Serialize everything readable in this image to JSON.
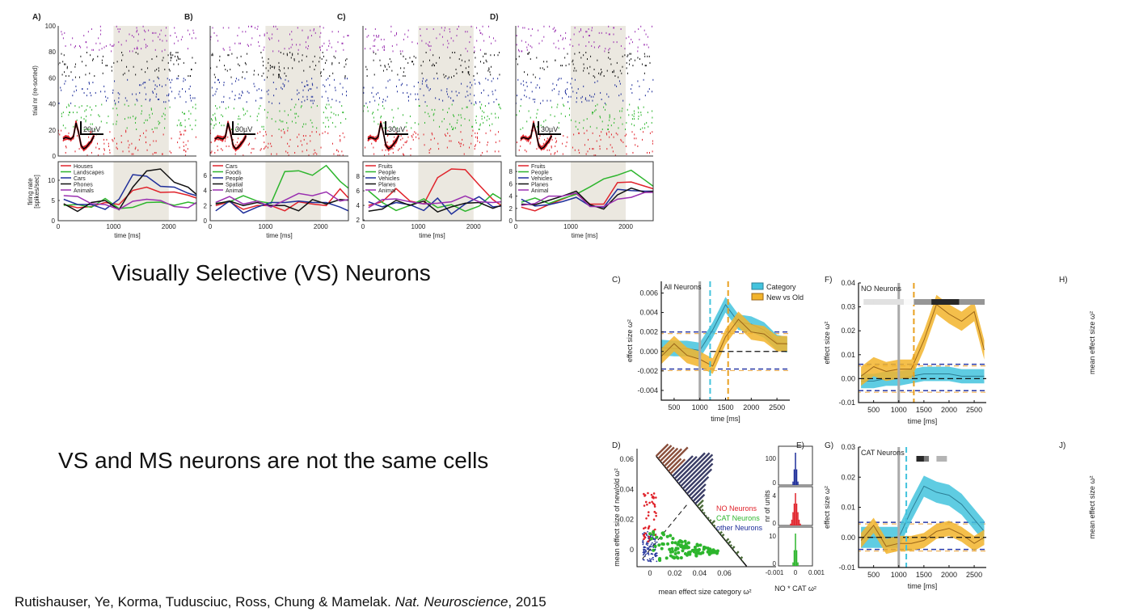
{
  "slide": {
    "heading_vs": "Visually Selective (VS) Neurons",
    "heading_same_cells": "VS and MS neurons are not the same cells",
    "citation_authors": "Rutishauser, Ye, Korma, Tudusciuc, Ross, Chung & Mamelak. ",
    "citation_journal": "Nat. Neuroscience",
    "citation_year": ", 2015"
  },
  "colors": {
    "red": "#e0232b",
    "green": "#2db52d",
    "blue": "#1f2f9a",
    "black": "#111111",
    "purple": "#9a2fb0",
    "shade": "#ebe8e0",
    "category_band": "#43c3dd",
    "category_line": "#2c7f96",
    "newold_band": "#f2b42c",
    "newold_line": "#9b6518",
    "null_blue": "#2a3aa8",
    "null_orange": "#f0b45a"
  },
  "chart_data": [
    {
      "panel": "A)",
      "type": "line",
      "raster_ylabel": "trial nr (re-sorted)",
      "raster_yticks": [
        "0",
        "20",
        "40",
        "60",
        "80",
        "100"
      ],
      "waveform_scale": "20µV",
      "ylabel": [
        "firing rate",
        "[spikes/sec]"
      ],
      "xlabel": "time [ms]",
      "xlim": [
        0,
        2500
      ],
      "ylim": [
        0,
        14.6
      ],
      "xticks": [
        0,
        1000,
        2000
      ],
      "yticks": [
        0,
        5,
        10
      ],
      "stimulus_window": [
        1000,
        2000
      ],
      "x": [
        100,
        350,
        600,
        850,
        1100,
        1350,
        1600,
        1850,
        2100,
        2350,
        2500
      ],
      "series": [
        {
          "name": "Houses",
          "color": "#e0232b",
          "values": [
            4,
            3.2,
            3.5,
            4.5,
            4,
            7.5,
            8.3,
            7,
            7.1,
            6.3,
            5.6
          ]
        },
        {
          "name": "Landscapes",
          "color": "#2db52d",
          "values": [
            3.8,
            4,
            3.3,
            5.5,
            3,
            3.3,
            4.5,
            4.6,
            3.8,
            4.6,
            4.2
          ]
        },
        {
          "name": "Cars",
          "color": "#1f2f9a",
          "values": [
            5.3,
            4,
            4,
            2.8,
            5.3,
            11.4,
            11,
            8.5,
            8.3,
            6.8,
            6.2
          ]
        },
        {
          "name": "Phones",
          "color": "#111111",
          "values": [
            4.2,
            2.3,
            4.5,
            5,
            2.7,
            8.3,
            12.3,
            12.8,
            9.5,
            8.3,
            6.5
          ]
        },
        {
          "name": "Animals",
          "color": "#9a2fb0",
          "values": [
            6.2,
            6,
            4.2,
            4,
            2.8,
            4.8,
            5.3,
            5,
            3.5,
            3.2,
            4.5
          ]
        }
      ]
    },
    {
      "panel": "B)",
      "type": "line",
      "waveform_scale": "30µV",
      "xlabel": "time [ms]",
      "xlim": [
        0,
        2500
      ],
      "ylim": [
        0,
        7.8
      ],
      "xticks": [
        0,
        1000,
        2000
      ],
      "yticks": [
        0,
        2,
        4,
        6
      ],
      "stimulus_window": [
        1000,
        2000
      ],
      "x": [
        100,
        350,
        600,
        850,
        1100,
        1350,
        1600,
        1850,
        2100,
        2350,
        2500
      ],
      "series": [
        {
          "name": "Cars",
          "color": "#e0232b",
          "values": [
            2,
            2.5,
            1.5,
            2,
            2,
            1.3,
            2.5,
            2.2,
            2,
            4.2,
            3
          ]
        },
        {
          "name": "Foods",
          "color": "#2db52d",
          "values": [
            2.3,
            2.5,
            3.3,
            2.6,
            2.3,
            6.5,
            6.6,
            6,
            7.3,
            5.2,
            4.3
          ]
        },
        {
          "name": "People",
          "color": "#1f2f9a",
          "values": [
            1.3,
            2.6,
            1,
            1.8,
            2.4,
            2.4,
            2.6,
            2.4,
            2.4,
            1.8,
            1.3
          ]
        },
        {
          "name": "Spatial",
          "color": "#111111",
          "values": [
            2.2,
            2.6,
            2,
            2.4,
            2,
            2,
            1.3,
            2.8,
            2.2,
            2.8,
            2.7
          ]
        },
        {
          "name": "Animal",
          "color": "#9a2fb0",
          "values": [
            2.4,
            3.2,
            2.2,
            2.6,
            1.8,
            2.7,
            3.6,
            3.3,
            3.8,
            2.6,
            2.8
          ]
        }
      ]
    },
    {
      "panel": "C)",
      "type": "line",
      "waveform_scale": "30µV",
      "xlabel": "time [ms]",
      "xlim": [
        0,
        2500
      ],
      "ylim": [
        1.9,
        10
      ],
      "xticks": [
        0,
        1000,
        2000
      ],
      "yticks": [
        2,
        4,
        6,
        8
      ],
      "stimulus_window": [
        1000,
        2000
      ],
      "x": [
        100,
        350,
        600,
        850,
        1100,
        1350,
        1600,
        1850,
        2100,
        2350,
        2500
      ],
      "series": [
        {
          "name": "Fruits",
          "color": "#e0232b",
          "values": [
            4,
            4.5,
            6.3,
            4.6,
            4.2,
            7.8,
            9,
            8.9,
            6.8,
            4.8,
            4
          ]
        },
        {
          "name": "People",
          "color": "#2db52d",
          "values": [
            6,
            4.4,
            3.3,
            4,
            4.9,
            3.7,
            4.1,
            3.2,
            3.9,
            5.6,
            4.9
          ]
        },
        {
          "name": "Vehicles",
          "color": "#1f2f9a",
          "values": [
            4.5,
            3.8,
            4.4,
            4.1,
            3.3,
            5,
            2.8,
            4.2,
            5.2,
            3.8,
            3.9
          ]
        },
        {
          "name": "Planes",
          "color": "#111111",
          "values": [
            3.2,
            3.5,
            4.7,
            4,
            4.6,
            3.1,
            3.8,
            4.3,
            4.4,
            3.6,
            4
          ]
        },
        {
          "name": "Animal",
          "color": "#9a2fb0",
          "values": [
            3.7,
            4.8,
            4.9,
            4.5,
            4.2,
            4.3,
            4.5,
            5.3,
            4.5,
            4.4,
            4.5
          ]
        }
      ]
    },
    {
      "panel": "D)",
      "type": "line",
      "waveform_scale": "30µV",
      "xlabel": "time [ms]",
      "xlim": [
        0,
        2500
      ],
      "ylim": [
        0,
        9.6
      ],
      "xticks": [
        0,
        1000,
        2000
      ],
      "yticks": [
        0,
        2,
        4,
        6,
        8
      ],
      "stimulus_window": [
        1000,
        2000
      ],
      "x": [
        100,
        350,
        600,
        850,
        1100,
        1350,
        1600,
        1850,
        2100,
        2350,
        2500
      ],
      "series": [
        {
          "name": "Fruits",
          "color": "#e0232b",
          "values": [
            2.2,
            1.6,
            2.6,
            3.5,
            4.4,
            2.7,
            2.7,
            6.2,
            6.3,
            5.6,
            5.2
          ]
        },
        {
          "name": "People",
          "color": "#2db52d",
          "values": [
            3,
            3.7,
            2.8,
            3.6,
            4.3,
            5.5,
            6.8,
            7.4,
            8.2,
            6.6,
            5.6
          ]
        },
        {
          "name": "Vehicles",
          "color": "#1f2f9a",
          "values": [
            3.5,
            2.4,
            2.6,
            3.1,
            3.8,
            2.4,
            2.2,
            5.1,
            4.9,
            4.8,
            4.8
          ]
        },
        {
          "name": "Planes",
          "color": "#111111",
          "values": [
            2.7,
            2.6,
            3.3,
            4,
            4.8,
            2.6,
            1.9,
            4.2,
            5.3,
            4.6,
            4.8
          ]
        },
        {
          "name": "Animal",
          "color": "#9a2fb0",
          "values": [
            2.5,
            2.8,
            4,
            4,
            4.5,
            2.3,
            2.3,
            3.5,
            3.8,
            4.6,
            4.6
          ]
        }
      ]
    },
    {
      "panel": "C)",
      "type": "line",
      "title": "All Neurons",
      "ylabel": "effect size ω²",
      "xlabel": "time [ms]",
      "xlim": [
        250,
        2750
      ],
      "ylim": [
        -0.005,
        0.0072
      ],
      "xticks": [
        500,
        1000,
        1500,
        2000,
        2500
      ],
      "yticks": [
        {
          "v": -0.004,
          "l": "-0.004"
        },
        {
          "v": -0.002,
          "l": "-0.002"
        },
        {
          "v": 0,
          "l": "0.000"
        },
        {
          "v": 0.002,
          "l": "0.002"
        },
        {
          "v": 0.004,
          "l": "0.004"
        },
        {
          "v": 0.006,
          "l": "0.006"
        }
      ],
      "legend": [
        "Category",
        "New vs Old"
      ],
      "onset_ms": 1000,
      "category_latency_ms": 1200,
      "newold_latency_ms": 1550,
      "null_bounds": [
        -0.0018,
        0.002
      ],
      "x": [
        250,
        500,
        750,
        1000,
        1250,
        1500,
        1750,
        2000,
        2250,
        2500,
        2700
      ],
      "series": [
        {
          "name": "Category",
          "sem": 0.0008,
          "values": [
            0.0004,
            0.0003,
            0.0003,
            0.0001,
            0.0022,
            0.0048,
            0.003,
            0.0028,
            0.0022,
            0.0009,
            0.0007
          ]
        },
        {
          "name": "New vs Old",
          "sem": 0.0008,
          "values": [
            -0.0005,
            0.0008,
            -0.0004,
            -0.0008,
            -0.0015,
            0.0015,
            0.0033,
            0.002,
            0.0018,
            0.0008,
            0.0008
          ]
        }
      ]
    },
    {
      "panel": "F)",
      "type": "line",
      "title": "NO Neurons",
      "ylabel": "effect size ω²",
      "xlabel": "time [ms]",
      "xlim": [
        200,
        2740
      ],
      "ylim": [
        -0.01,
        0.04
      ],
      "xticks": [
        500,
        1000,
        1500,
        2000,
        2500
      ],
      "yticks": [
        {
          "v": -0.01,
          "l": "-0.01"
        },
        {
          "v": 0,
          "l": "0.00"
        },
        {
          "v": 0.01,
          "l": "0.01"
        },
        {
          "v": 0.02,
          "l": "0.02"
        },
        {
          "v": 0.03,
          "l": "0.03"
        },
        {
          "v": 0.04,
          "l": "0.04"
        }
      ],
      "onset_ms": 1000,
      "newold_latency_ms": 1300,
      "null_bounds": [
        -0.005,
        0.006
      ],
      "x": [
        250,
        500,
        750,
        1000,
        1250,
        1500,
        1750,
        2000,
        2250,
        2500,
        2700
      ],
      "series": [
        {
          "name": "Category",
          "sem": 0.003,
          "values": [
            -0.001,
            -0.001,
            0,
            0,
            0.001,
            0.002,
            0.002,
            0.002,
            0.001,
            0.001,
            0.001
          ]
        },
        {
          "name": "New vs Old",
          "sem": 0.004,
          "values": [
            0.001,
            0.005,
            0.003,
            0.004,
            0.004,
            0.016,
            0.031,
            0.027,
            0.024,
            0.028,
            0.012
          ]
        }
      ],
      "right_label": "H)",
      "right_ylabel": "mean effect size ω²"
    },
    {
      "panel": "D)",
      "type": "scatter",
      "xlabel": "mean effect size category ω²",
      "ylabel": "mean effect size of new/old ω²",
      "xticks": [
        {
          "v": 0,
          "l": "0"
        },
        {
          "v": 0.02,
          "l": "0.02"
        },
        {
          "v": 0.04,
          "l": "0.04"
        },
        {
          "v": 0.06,
          "l": "0.06"
        }
      ],
      "yticks": [
        {
          "v": 0,
          "l": "0"
        },
        {
          "v": 0.02,
          "l": "0.02"
        },
        {
          "v": 0.04,
          "l": "0.04"
        },
        {
          "v": 0.06,
          "l": "0.06"
        }
      ],
      "legend": [
        {
          "name": "NO Neurons",
          "color": "#e0232b"
        },
        {
          "name": "CAT Neurons",
          "color": "#2db52d"
        },
        {
          "name": "other Neurons",
          "color": "#1f2f9a"
        }
      ]
    },
    {
      "panel": "E)",
      "type": "bar",
      "xlabel": "NO * CAT ω²",
      "ylabel": "nr of units",
      "xticks": [
        "-0.001",
        "0",
        "0.001"
      ],
      "subpanels": [
        {
          "color": "#1f2f9a",
          "yticks": [
            "0",
            "100"
          ]
        },
        {
          "color": "#e0232b",
          "yticks": [
            "0",
            "4"
          ]
        },
        {
          "color": "#2db52d",
          "yticks": [
            "0",
            "10"
          ]
        }
      ]
    },
    {
      "panel": "G)",
      "type": "line",
      "title": "CAT Neurons",
      "ylabel": "effect size ω²",
      "xlabel": "time [ms]",
      "xlim": [
        200,
        2740
      ],
      "ylim": [
        -0.01,
        0.03
      ],
      "xticks": [
        500,
        1000,
        1500,
        2000,
        2500
      ],
      "yticks": [
        {
          "v": -0.01,
          "l": "-0.01"
        },
        {
          "v": 0,
          "l": "0.00"
        },
        {
          "v": 0.01,
          "l": "0.01"
        },
        {
          "v": 0.02,
          "l": "0.02"
        },
        {
          "v": 0.03,
          "l": "0.03"
        }
      ],
      "onset_ms": 1000,
      "category_latency_ms": 1150,
      "null_bounds": [
        -0.004,
        0.005
      ],
      "x": [
        250,
        500,
        750,
        1000,
        1250,
        1500,
        1750,
        2000,
        2250,
        2500,
        2700
      ],
      "series": [
        {
          "name": "Category",
          "sem": 0.0035,
          "values": [
            0,
            0,
            0,
            0,
            0.009,
            0.017,
            0.015,
            0.014,
            0.011,
            0.006,
            0.002
          ]
        },
        {
          "name": "New vs Old",
          "sem": 0.0025,
          "values": [
            -0.001,
            0.004,
            -0.003,
            -0.002,
            -0.002,
            -0.001,
            0.002,
            0.003,
            0.001,
            -0.002,
            0
          ]
        }
      ],
      "right_label": "J)",
      "right_ylabel": "mean effect size ω²"
    }
  ]
}
